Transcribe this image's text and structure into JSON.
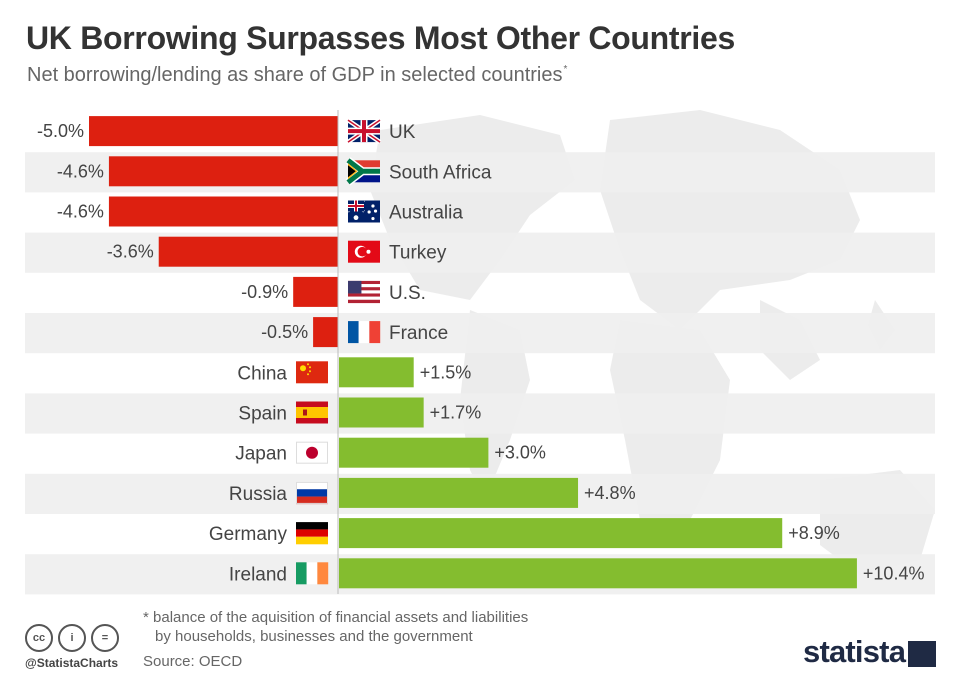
{
  "title": "UK Borrowing Surpasses Most Other Countries",
  "subtitle": "Net borrowing/lending as share of GDP in selected countries",
  "subtitle_marker": "*",
  "chart_data": {
    "type": "bar",
    "orientation": "horizontal",
    "categories": [
      "UK",
      "South Africa",
      "Australia",
      "Turkey",
      "U.S.",
      "France",
      "China",
      "Spain",
      "Japan",
      "Russia",
      "Germany",
      "Ireland"
    ],
    "values": [
      -5.0,
      -4.6,
      -4.6,
      -3.6,
      -0.9,
      -0.5,
      1.5,
      1.7,
      3.0,
      4.8,
      8.9,
      10.4
    ],
    "value_labels": [
      "-5.0%",
      "-4.6%",
      "-4.6%",
      "-3.6%",
      "-0.9%",
      "-0.5%",
      "+1.5%",
      "+1.7%",
      "+3.0%",
      "+4.8%",
      "+8.9%",
      "+10.4%"
    ],
    "flags": [
      "uk",
      "south-africa",
      "australia",
      "turkey",
      "us",
      "france",
      "china",
      "spain",
      "japan",
      "russia",
      "germany",
      "ireland"
    ],
    "unit": "% of GDP",
    "colors": {
      "negative": "#dd2010",
      "positive": "#84bd2f",
      "band": "#efefef",
      "axis": "#bbbbbb",
      "text": "#444444"
    }
  },
  "footnote": {
    "line1": "* balance of the aquisition of financial assets and liabilities",
    "line2": "by households, businesses and the government"
  },
  "source": "Source: OECD",
  "handle": "@StatistaCharts",
  "license_icons": [
    "cc-icon",
    "by-icon",
    "nd-icon"
  ],
  "license_glyphs": [
    "cc",
    "i",
    "="
  ],
  "brand": "statista"
}
